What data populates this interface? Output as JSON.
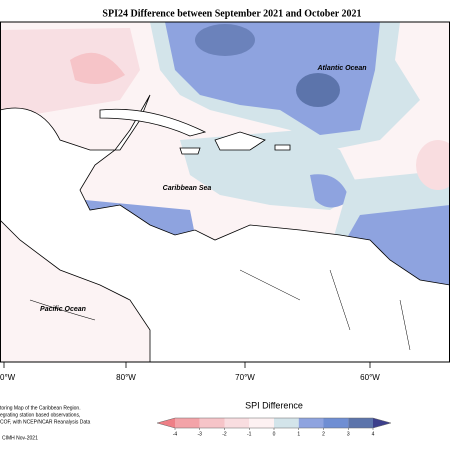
{
  "title": "SPI24 Difference between September 2021 and October 2021",
  "map": {
    "labels": [
      "Atlantic Ocean",
      "Caribbean Sea",
      "Pacific Ocean"
    ],
    "lon_labels": [
      "0°W",
      "80°W",
      "70°W",
      "60°W"
    ]
  },
  "colorbar": {
    "title": "SPI Difference",
    "ticks": [
      -4,
      -3,
      -2,
      -1,
      0,
      1,
      2,
      3,
      4
    ],
    "colors": [
      "#f3a3a8",
      "#f6c4c8",
      "#f9dde0",
      "#fdf1f2",
      "#d3e4ea",
      "#8ea3df",
      "#6f8ed3",
      "#5c74ab"
    ],
    "under_color": "#ee7f86",
    "over_color": "#3c3f8b"
  },
  "footer": {
    "lines": [
      "toring Map of the Caribbean Region.",
      "egrating station based observations,",
      "COF, with NCEP/NCAR Reanalysis Data"
    ],
    "credit": "CIMH Nov-2021"
  }
}
